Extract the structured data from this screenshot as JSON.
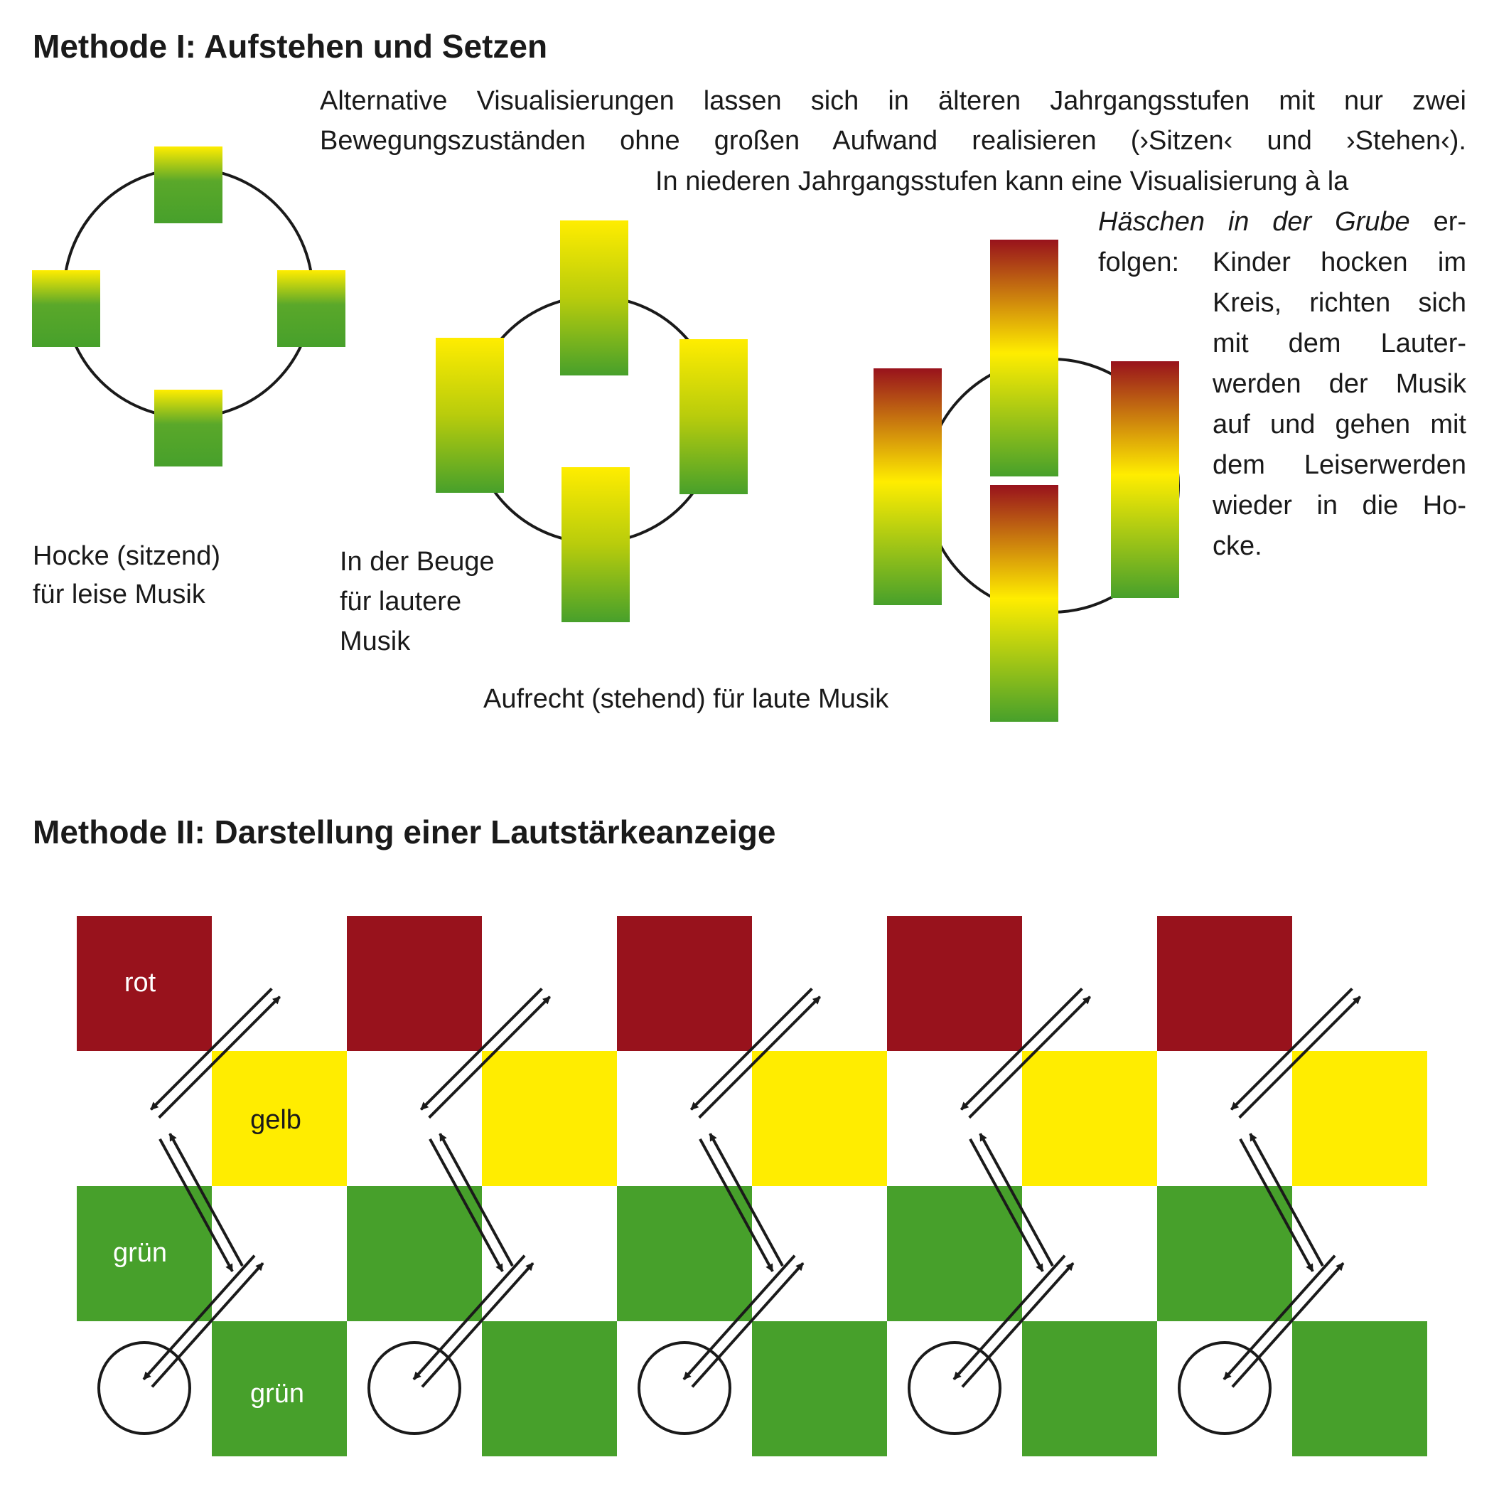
{
  "method1": {
    "heading": "Methode I: Aufstehen und Setzen",
    "text_lines": [
      "Alternative Visualisierungen lassen sich in älteren Jahrgangsstufen mit nur zwei",
      "Bewegungszuständen ohne großen Aufwand realisieren (›Sitzen‹ und ›Stehen‹).",
      "In niederen Jahrgangsstufen kann eine Visualisierung à la",
      "erfolgen: Kinder hocken im",
      "Kreis, richten sich",
      "mit dem Lauter-",
      "werden der Musik",
      "auf und gehen mit",
      "dem Leiserwerden",
      "wieder in die Ho-",
      "cke."
    ],
    "italic_title": "Häschen in der Grube",
    "line4_rest": "er-",
    "line5_a": "folgen:",
    "line5_b": "Kinder hocken im",
    "labels": {
      "hocke_1": "Hocke (sitzend)",
      "hocke_2": "für leise Musik",
      "beuge_1": "In der Beuge",
      "beuge_2": "für lautere",
      "beuge_3": "Musik",
      "aufrecht": "Aufrecht (stehend) für laute Musik"
    }
  },
  "method2": {
    "heading": "Methode II: Darstellung einer Lautstärkeanzeige",
    "cells": {
      "rot": "rot",
      "gelb": "gelb",
      "gruen_1": "grün",
      "gruen_2": "grün"
    },
    "column_count": 5
  },
  "colors": {
    "red": "#98121c",
    "yellow": "#ffed00",
    "green": "#47a02b",
    "line": "#1a1a1a"
  }
}
